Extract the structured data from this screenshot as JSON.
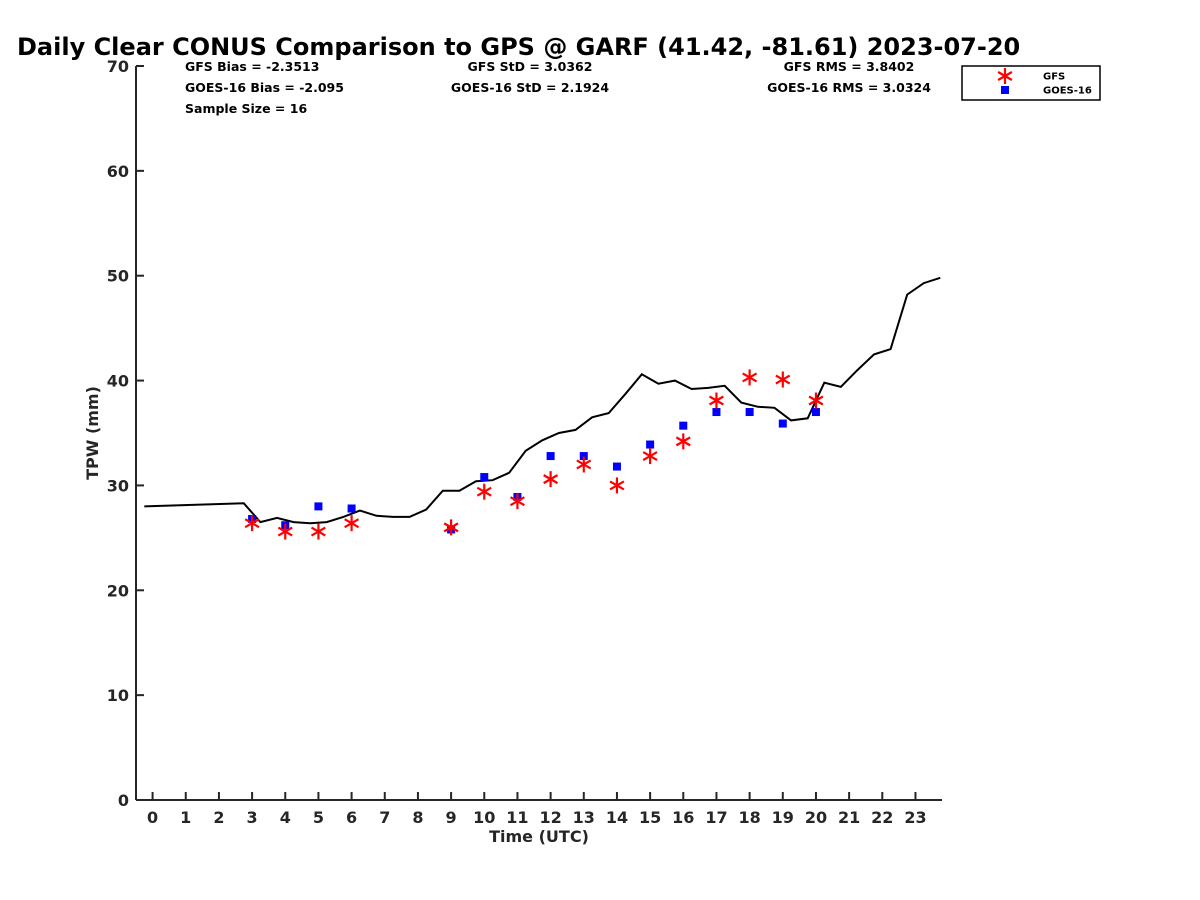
{
  "chart_data": {
    "type": "scatter",
    "title": "Daily Clear CONUS Comparison to GPS @ GARF (41.42, -81.61) 2023-07-20",
    "xlabel": "Time (UTC)",
    "ylabel": "TPW (mm)",
    "xlim": [
      -0.5,
      23.8
    ],
    "ylim": [
      0,
      70
    ],
    "xticks": [
      "0",
      "1",
      "2",
      "3",
      "4",
      "5",
      "6",
      "7",
      "8",
      "9",
      "10",
      "11",
      "12",
      "13",
      "14",
      "15",
      "16",
      "17",
      "18",
      "19",
      "20",
      "21",
      "22",
      "23"
    ],
    "yticks": [
      "0",
      "10",
      "20",
      "30",
      "40",
      "50",
      "60",
      "70"
    ],
    "grid": false,
    "legend_position": "top-right",
    "stats": [
      [
        "GFS Bias = -2.3513",
        "GFS StD = 3.0362",
        "GFS RMS = 3.8402"
      ],
      [
        "GOES-16 Bias = -2.095",
        "GOES-16 StD = 2.1924",
        "GOES-16 RMS = 3.0324"
      ],
      [
        "Sample Size = 16",
        "",
        ""
      ]
    ],
    "series": [
      {
        "name": "",
        "kind": "line",
        "color": "#000000",
        "x": [
          -0.25,
          2.75,
          3.25,
          3.75,
          4.25,
          4.75,
          5.25,
          5.75,
          6.25,
          6.75,
          7.25,
          7.75,
          8.25,
          8.75,
          9.25,
          9.75,
          10.25,
          10.75,
          11.25,
          11.75,
          12.25,
          12.75,
          13.25,
          13.75,
          14.25,
          14.75,
          15.25,
          15.75,
          16.25,
          16.75,
          17.25,
          17.75,
          18.25,
          18.75,
          19.25,
          19.75,
          20.25,
          20.75,
          21.25,
          21.75,
          22.25,
          22.75,
          23.25,
          23.75
        ],
        "y": [
          28.0,
          28.3,
          26.5,
          26.9,
          26.5,
          26.4,
          26.5,
          27.0,
          27.6,
          27.1,
          27.0,
          27.0,
          27.7,
          29.5,
          29.5,
          30.4,
          30.5,
          31.2,
          33.3,
          34.3,
          35.0,
          35.3,
          36.5,
          36.9,
          38.7,
          40.6,
          39.7,
          40.0,
          39.2,
          39.3,
          39.5,
          37.9,
          37.5,
          37.4,
          36.2,
          36.4,
          39.8,
          39.4,
          41.0,
          42.5,
          43.0,
          48.2,
          49.3,
          49.8
        ]
      },
      {
        "name": "GFS",
        "kind": "marker-star",
        "color": "#ff0000",
        "x": [
          3,
          4,
          5,
          6,
          9,
          10,
          11,
          12,
          13,
          14,
          15,
          16,
          17,
          18,
          19,
          20
        ],
        "y": [
          26.4,
          25.6,
          25.6,
          26.4,
          26.0,
          29.4,
          28.5,
          30.6,
          32.0,
          30.0,
          32.8,
          34.2,
          38.1,
          40.3,
          40.1,
          38.1
        ]
      },
      {
        "name": "GOES-16",
        "kind": "marker-square",
        "color": "#0000ff",
        "x": [
          3,
          4,
          5,
          6,
          9,
          10,
          11,
          12,
          13,
          14,
          15,
          16,
          17,
          18,
          19,
          20
        ],
        "y": [
          26.8,
          26.2,
          28.0,
          27.8,
          25.8,
          30.8,
          28.9,
          32.8,
          32.8,
          31.8,
          33.9,
          35.7,
          37.0,
          37.0,
          35.9,
          37.0
        ]
      }
    ]
  }
}
